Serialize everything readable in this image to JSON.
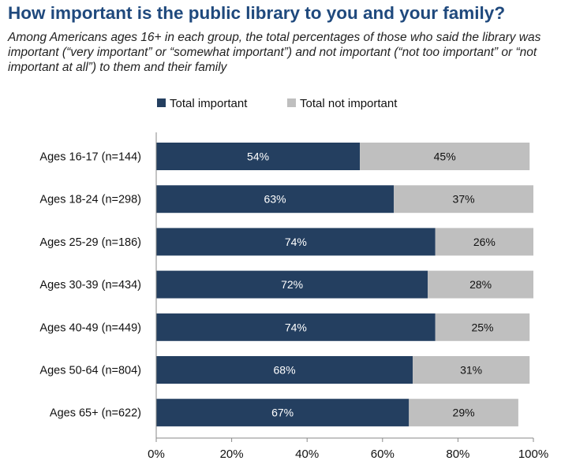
{
  "header": {
    "title": "How important is the public library to you and your family?",
    "subtitle": "Among Americans ages 16+ in each group, the total percentages of those who said the library was important (“very important” or “somewhat important”) and not important (“not too important” or “not important at all”) to them and their family"
  },
  "colors": {
    "important": "#243f60",
    "not_important": "#bfbfbf",
    "title": "#1f497d"
  },
  "chart_data": {
    "type": "bar",
    "orientation": "horizontal",
    "stacked": true,
    "title": "How important is the public library to you and your family?",
    "categories": [
      "Ages 16-17 (n=144)",
      "Ages 18-24 (n=298)",
      "Ages 25-29 (n=186)",
      "Ages 30-39 (n=434)",
      "Ages 40-49 (n=449)",
      "Ages 50-64 (n=804)",
      "Ages 65+ (n=622)"
    ],
    "series": [
      {
        "name": "Total important",
        "values": [
          54,
          63,
          74,
          72,
          74,
          68,
          67
        ],
        "labels": [
          "54%",
          "63%",
          "74%",
          "72%",
          "74%",
          "68%",
          "67%"
        ]
      },
      {
        "name": "Total not important",
        "values": [
          45,
          37,
          26,
          28,
          25,
          31,
          29
        ],
        "labels": [
          "45%",
          "37%",
          "26%",
          "28%",
          "25%",
          "31%",
          "29%"
        ]
      }
    ],
    "xlim": [
      0,
      100
    ],
    "x_ticks": [
      0,
      20,
      40,
      60,
      80,
      100
    ],
    "x_tick_labels": [
      "0%",
      "20%",
      "40%",
      "60%",
      "80%",
      "100%"
    ],
    "grid": false,
    "legend_position": "top"
  }
}
